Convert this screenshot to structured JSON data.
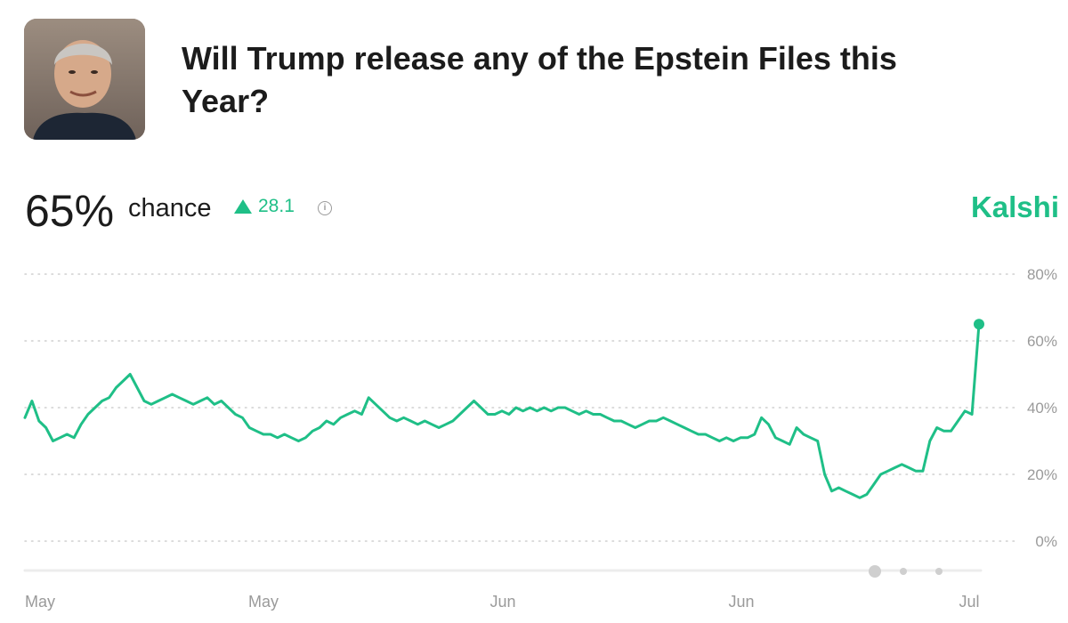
{
  "market": {
    "title": "Will Trump release any of the Epstein Files this Year?",
    "chance_value": "65%",
    "chance_word": "chance",
    "delta": "28.1",
    "brand": "Kalshi"
  },
  "colors": {
    "accent": "#1fbf87",
    "grid": "#cfcfcf",
    "tick_text": "#9a9a9a"
  },
  "icons": {
    "delta": "up-triangle-icon",
    "info": "info-circle-icon"
  },
  "chart_data": {
    "type": "line",
    "ylim": [
      0,
      80
    ],
    "y_ticks": [
      80,
      60,
      40,
      20,
      0
    ],
    "y_tick_labels": [
      "80%",
      "60%",
      "40%",
      "20%",
      "0%"
    ],
    "x_tick_labels": [
      "May",
      "May",
      "Jun",
      "Jun",
      "Jul"
    ],
    "grid": true,
    "series": [
      {
        "values": [
          37,
          42,
          36,
          34,
          30,
          31,
          32,
          31,
          35,
          38,
          40,
          42,
          43,
          46,
          48,
          50,
          46,
          42,
          41,
          42,
          43,
          44,
          43,
          42,
          41,
          42,
          43,
          41,
          42,
          40,
          38,
          37,
          34,
          33,
          32,
          32,
          31,
          32,
          31,
          30,
          31,
          33,
          34,
          36,
          35,
          37,
          38,
          39,
          38,
          43,
          41,
          39,
          37,
          36,
          37,
          36,
          35,
          36,
          35,
          34,
          35,
          36,
          38,
          40,
          42,
          40,
          38,
          38,
          39,
          38,
          40,
          39,
          40,
          39,
          40,
          39,
          40,
          40,
          39,
          38,
          39,
          38,
          38,
          37,
          36,
          36,
          35,
          34,
          35,
          36,
          36,
          37,
          36,
          35,
          34,
          33,
          32,
          32,
          31,
          30,
          31,
          30,
          31,
          31,
          32,
          37,
          35,
          31,
          30,
          29,
          34,
          32,
          31,
          30,
          20,
          15,
          16,
          15,
          14,
          13,
          14,
          17,
          20,
          21,
          22,
          23,
          22,
          21,
          21,
          30,
          34,
          33,
          33,
          36,
          39,
          38,
          65
        ]
      }
    ]
  }
}
